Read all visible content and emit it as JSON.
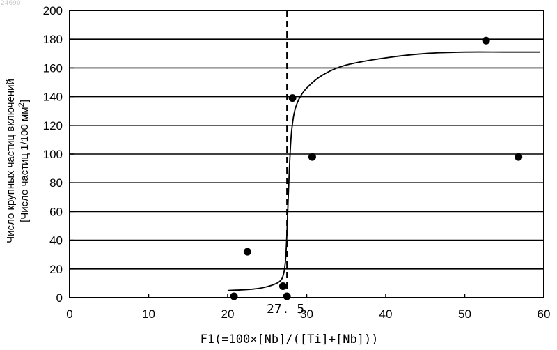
{
  "watermark": "24690",
  "chart_data": {
    "type": "scatter",
    "xlabel": "F1(=100×[Nb]/([Ti]+[Nb]))",
    "ylabel_line1": "Число крупных частиц включений",
    "ylabel_line2_prefix": "[Число частиц 1/100 мм",
    "ylabel_line2_sup": "2",
    "ylabel_line2_suffix": "]",
    "xlim": [
      0,
      60
    ],
    "ylim": [
      0,
      200
    ],
    "x_ticks": [
      0,
      10,
      20,
      30,
      40,
      50,
      60
    ],
    "y_ticks": [
      0,
      20,
      40,
      60,
      80,
      100,
      120,
      140,
      160,
      180,
      200
    ],
    "grid": "horizontal",
    "points": [
      {
        "x": 20.8,
        "y": 1
      },
      {
        "x": 22.5,
        "y": 32
      },
      {
        "x": 27.0,
        "y": 8
      },
      {
        "x": 27.5,
        "y": 1
      },
      {
        "x": 28.2,
        "y": 139
      },
      {
        "x": 30.7,
        "y": 98
      },
      {
        "x": 52.7,
        "y": 179
      },
      {
        "x": 56.8,
        "y": 98
      }
    ],
    "fit_curve": [
      [
        20,
        5
      ],
      [
        22,
        5.5
      ],
      [
        24,
        6.5
      ],
      [
        25.5,
        8.5
      ],
      [
        26.5,
        11
      ],
      [
        27.0,
        15
      ],
      [
        27.3,
        25
      ],
      [
        27.5,
        45
      ],
      [
        27.7,
        75
      ],
      [
        28.0,
        110
      ],
      [
        28.4,
        128
      ],
      [
        29.0,
        138
      ],
      [
        30.0,
        146
      ],
      [
        32.0,
        155
      ],
      [
        35.0,
        162
      ],
      [
        40.0,
        167
      ],
      [
        45.0,
        170
      ],
      [
        50.0,
        171
      ],
      [
        55.0,
        171
      ],
      [
        59.5,
        171
      ]
    ],
    "threshold": {
      "x": 27.5,
      "label": "27. 5"
    }
  }
}
